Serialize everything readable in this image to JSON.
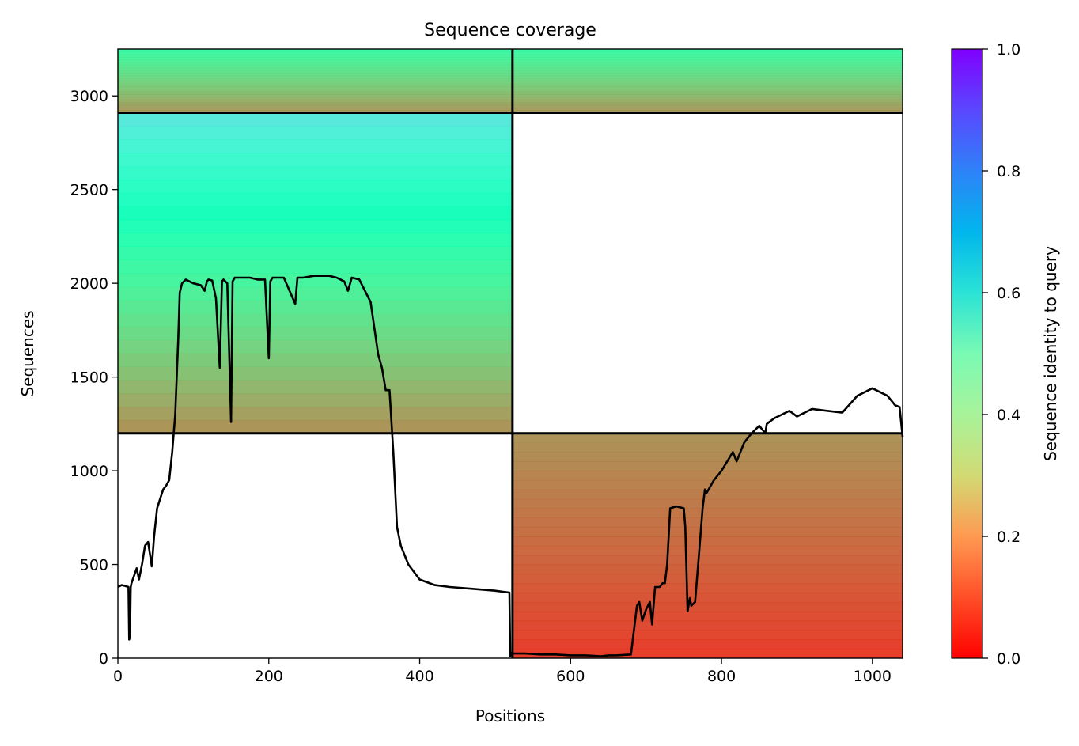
{
  "chart_data": {
    "type": "heatmap",
    "title": "Sequence coverage",
    "xlabel": "Positions",
    "ylabel": "Sequences",
    "xlim": [
      0,
      1040
    ],
    "ylim": [
      0,
      3250
    ],
    "x_ticks": [
      0,
      200,
      400,
      600,
      800,
      1000
    ],
    "y_ticks": [
      0,
      500,
      1000,
      1500,
      2000,
      2500,
      3000
    ],
    "colorbar": {
      "label": "Sequence identity to query",
      "range": [
        0,
        1
      ],
      "ticks": [
        "0.0",
        "0.2",
        "0.4",
        "0.6",
        "0.8",
        "1.0"
      ],
      "colormap": "rainbow_r"
    },
    "block_separators": {
      "vertical_x": [
        523
      ],
      "horizontal_y": [
        1200,
        2910
      ]
    },
    "blocks": [
      {
        "x0": 0,
        "x1": 523,
        "y0": 2910,
        "y1": 3250,
        "id_top": 0.42,
        "id_bottom": 0.18
      },
      {
        "x0": 523,
        "x1": 1040,
        "y0": 2910,
        "y1": 3250,
        "id_top": 0.42,
        "id_bottom": 0.18
      },
      {
        "x0": 0,
        "x1": 523,
        "y0": 1200,
        "y1": 2910,
        "id_top": 0.65,
        "id_bottom": 0.17
      },
      {
        "x0": 523,
        "x1": 1040,
        "y0": 0,
        "y1": 1200,
        "id_top": 0.18,
        "id_bottom": 0.05
      }
    ],
    "coverage_line": {
      "name": "Coverage",
      "x": [
        0,
        5,
        10,
        14,
        15,
        16,
        17,
        18,
        25,
        28,
        32,
        36,
        40,
        45,
        48,
        52,
        56,
        60,
        64,
        68,
        72,
        76,
        80,
        82,
        85,
        90,
        100,
        110,
        115,
        118,
        120,
        125,
        130,
        135,
        138,
        140,
        145,
        150,
        152,
        155,
        158,
        165,
        175,
        185,
        195,
        200,
        202,
        205,
        210,
        220,
        235,
        238,
        245,
        260,
        280,
        290,
        300,
        305,
        310,
        320,
        335,
        345,
        350,
        355,
        360,
        365,
        370,
        375,
        385,
        400,
        420,
        440,
        470,
        500,
        519,
        520,
        522,
        523,
        527,
        540,
        560,
        580,
        600,
        620,
        640,
        650,
        660,
        680,
        688,
        691,
        695,
        700,
        705,
        708,
        712,
        718,
        722,
        725,
        728,
        732,
        740,
        750,
        752,
        755,
        758,
        760,
        765,
        770,
        775,
        778,
        780,
        790,
        800,
        815,
        820,
        830,
        840,
        850,
        858,
        860,
        870,
        880,
        890,
        900,
        920,
        940,
        960,
        980,
        1000,
        1020,
        1030,
        1036,
        1040
      ],
      "y": [
        380,
        390,
        385,
        380,
        100,
        120,
        380,
        400,
        480,
        420,
        500,
        600,
        620,
        490,
        650,
        800,
        850,
        900,
        920,
        950,
        1100,
        1300,
        1700,
        1950,
        2000,
        2020,
        2000,
        1990,
        1960,
        2010,
        2020,
        2015,
        1920,
        1550,
        2010,
        2020,
        2000,
        1260,
        2010,
        2030,
        2030,
        2030,
        2030,
        2020,
        2020,
        1600,
        2010,
        2030,
        2030,
        2030,
        1890,
        2030,
        2030,
        2040,
        2040,
        2030,
        2010,
        1960,
        2030,
        2020,
        1900,
        1620,
        1550,
        1430,
        1430,
        1100,
        700,
        600,
        500,
        420,
        390,
        380,
        370,
        360,
        350,
        10,
        30,
        25,
        25,
        25,
        20,
        20,
        15,
        15,
        10,
        15,
        15,
        20,
        280,
        300,
        200,
        260,
        300,
        180,
        380,
        380,
        400,
        400,
        500,
        800,
        810,
        800,
        700,
        250,
        320,
        280,
        300,
        550,
        800,
        900,
        880,
        950,
        1000,
        1100,
        1050,
        1150,
        1200,
        1240,
        1200,
        1250,
        1280,
        1300,
        1320,
        1290,
        1330,
        1320,
        1310,
        1400,
        1440,
        1400,
        1350,
        1340,
        1180
      ]
    }
  }
}
